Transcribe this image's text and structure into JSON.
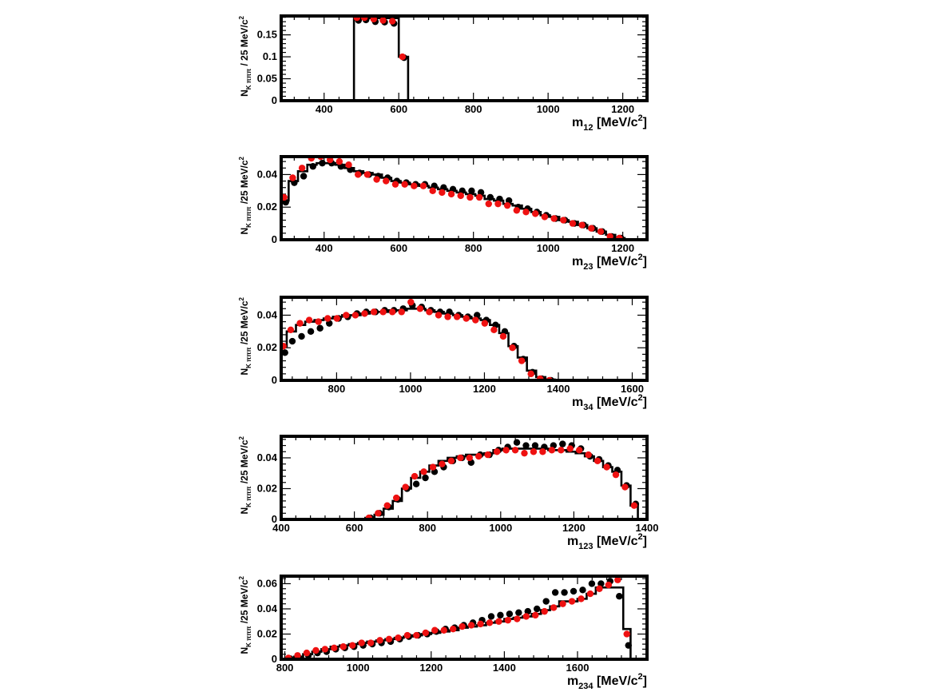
{
  "colors": {
    "model": "#000000",
    "black_points": "#000000",
    "red_points": "#ee1111"
  },
  "chart_data": [
    {
      "type": "line",
      "ylabel": {
        "main": "N",
        "sub": "K πππ",
        "unit": " / 25 MeV/c",
        "sup": "2"
      },
      "xlabel": {
        "main": "m",
        "sub": "12",
        "unit": " [MeV/c",
        "sup": "2",
        "close": "]"
      },
      "xlim": [
        285,
        1265
      ],
      "ylim": [
        0,
        0.193
      ],
      "xticks": [
        400,
        600,
        800,
        1000,
        1200
      ],
      "xtick_labels": [
        "400",
        "600",
        "800",
        "1000",
        "1200"
      ],
      "yticks": [
        0,
        0.05,
        0.1,
        0.15
      ],
      "ytick_labels": [
        "0",
        "0.05",
        "0.1",
        "0.15"
      ],
      "model_hist": {
        "edges": [
          480,
          600,
          625
        ],
        "values": [
          0.188,
          0.1
        ]
      },
      "series_black": {
        "x": [
          490,
          510,
          535,
          560,
          585,
          612
        ],
        "y": [
          0.183,
          0.184,
          0.18,
          0.179,
          0.176,
          0.098
        ]
      },
      "series_red": {
        "x": [
          490,
          510,
          535,
          560,
          585,
          612
        ],
        "y": [
          0.189,
          0.189,
          0.186,
          0.183,
          0.181,
          0.1
        ]
      }
    },
    {
      "type": "line",
      "ylabel": {
        "main": "N",
        "sub": "K πππ",
        "unit": " /25 MeV/c",
        "sup": "2"
      },
      "xlabel": {
        "main": "m",
        "sub": "23",
        "unit": " [MeV/c",
        "sup": "2",
        "close": "]"
      },
      "xlim": [
        285,
        1265
      ],
      "ylim": [
        0,
        0.051
      ],
      "xticks": [
        400,
        600,
        800,
        1000,
        1200
      ],
      "xtick_labels": [
        "400",
        "600",
        "800",
        "1000",
        "1200"
      ],
      "yticks": [
        0,
        0.02,
        0.04
      ],
      "ytick_labels": [
        "0",
        "0.02",
        "0.04"
      ],
      "model_hist": {
        "edges": [
          285,
          305,
          330,
          355,
          380,
          405,
          430,
          455,
          480,
          505,
          530,
          555,
          580,
          605,
          630,
          655,
          680,
          705,
          730,
          755,
          780,
          805,
          830,
          855,
          880,
          905,
          930,
          955,
          980,
          1005,
          1030,
          1055,
          1080,
          1105,
          1130,
          1155,
          1180,
          1205
        ],
        "values": [
          0.024,
          0.036,
          0.042,
          0.046,
          0.047,
          0.047,
          0.046,
          0.044,
          0.042,
          0.041,
          0.04,
          0.038,
          0.036,
          0.035,
          0.034,
          0.033,
          0.032,
          0.031,
          0.03,
          0.029,
          0.028,
          0.027,
          0.025,
          0.024,
          0.022,
          0.021,
          0.019,
          0.017,
          0.015,
          0.014,
          0.012,
          0.011,
          0.009,
          0.007,
          0.005,
          0.003,
          0.001
        ]
      },
      "series_black": {
        "x": [
          295,
          318,
          343,
          368,
          393,
          418,
          443,
          468,
          493,
          518,
          543,
          568,
          593,
          618,
          643,
          668,
          693,
          718,
          743,
          768,
          793,
          818,
          843,
          868,
          893,
          918,
          943,
          968,
          993,
          1018,
          1043,
          1068,
          1093,
          1118,
          1143,
          1168,
          1193
        ],
        "y": [
          0.023,
          0.035,
          0.039,
          0.045,
          0.047,
          0.047,
          0.045,
          0.043,
          0.041,
          0.04,
          0.039,
          0.038,
          0.036,
          0.035,
          0.034,
          0.034,
          0.033,
          0.032,
          0.031,
          0.03,
          0.03,
          0.029,
          0.026,
          0.025,
          0.024,
          0.02,
          0.019,
          0.017,
          0.015,
          0.013,
          0.012,
          0.01,
          0.009,
          0.007,
          0.005,
          0.002,
          0.001
        ]
      },
      "series_red": {
        "x": [
          295,
          318,
          343,
          368,
          393,
          418,
          443,
          468,
          493,
          518,
          543,
          568,
          593,
          618,
          643,
          668,
          693,
          718,
          743,
          768,
          793,
          818,
          843,
          868,
          893,
          918,
          943,
          968,
          993,
          1018,
          1043,
          1068,
          1093,
          1118,
          1143,
          1168,
          1193
        ],
        "y": [
          0.026,
          0.038,
          0.044,
          0.05,
          0.051,
          0.049,
          0.048,
          0.046,
          0.04,
          0.04,
          0.037,
          0.036,
          0.034,
          0.034,
          0.033,
          0.033,
          0.03,
          0.029,
          0.028,
          0.027,
          0.026,
          0.026,
          0.022,
          0.022,
          0.021,
          0.018,
          0.017,
          0.016,
          0.014,
          0.013,
          0.012,
          0.01,
          0.009,
          0.007,
          0.005,
          0.002,
          0.001
        ]
      }
    },
    {
      "type": "line",
      "ylabel": {
        "main": "N",
        "sub": "K πππ",
        "unit": " /25 MeV/c",
        "sup": "2"
      },
      "xlabel": {
        "main": "m",
        "sub": "34",
        "unit": " [MeV/c",
        "sup": "2",
        "close": "]"
      },
      "xlim": [
        650,
        1640
      ],
      "ylim": [
        0,
        0.051
      ],
      "xticks": [
        800,
        1000,
        1200,
        1400,
        1600
      ],
      "xtick_labels": [
        "800",
        "1000",
        "1200",
        "1400",
        "1600"
      ],
      "yticks": [
        0,
        0.02,
        0.04
      ],
      "ytick_labels": [
        "0",
        "0.02",
        "0.04"
      ],
      "model_hist": {
        "edges": [
          650,
          665,
          690,
          715,
          740,
          765,
          790,
          815,
          840,
          865,
          890,
          915,
          940,
          965,
          990,
          1015,
          1040,
          1065,
          1090,
          1115,
          1140,
          1165,
          1190,
          1215,
          1240,
          1265,
          1290,
          1315,
          1340,
          1365,
          1390
        ],
        "values": [
          0.021,
          0.03,
          0.034,
          0.036,
          0.037,
          0.038,
          0.039,
          0.04,
          0.04,
          0.041,
          0.042,
          0.042,
          0.043,
          0.043,
          0.044,
          0.044,
          0.043,
          0.042,
          0.041,
          0.04,
          0.039,
          0.038,
          0.037,
          0.034,
          0.029,
          0.021,
          0.014,
          0.006,
          0.002,
          0.0005
        ]
      },
      "series_black": {
        "x": [
          658,
          678,
          703,
          728,
          753,
          778,
          803,
          828,
          853,
          878,
          903,
          928,
          953,
          978,
          1003,
          1028,
          1053,
          1078,
          1103,
          1128,
          1153,
          1178,
          1203,
          1228,
          1253,
          1278,
          1303,
          1328,
          1353,
          1378
        ],
        "y": [
          0.017,
          0.024,
          0.027,
          0.03,
          0.032,
          0.035,
          0.038,
          0.039,
          0.041,
          0.042,
          0.042,
          0.043,
          0.043,
          0.044,
          0.046,
          0.045,
          0.043,
          0.042,
          0.042,
          0.04,
          0.039,
          0.04,
          0.037,
          0.034,
          0.03,
          0.021,
          0.013,
          0.005,
          0.001,
          0.0
        ]
      },
      "series_red": {
        "x": [
          658,
          678,
          703,
          728,
          753,
          778,
          803,
          828,
          853,
          878,
          903,
          928,
          953,
          978,
          1003,
          1028,
          1053,
          1078,
          1103,
          1128,
          1153,
          1178,
          1203,
          1228,
          1253,
          1278,
          1303,
          1328,
          1353,
          1378
        ],
        "y": [
          0.021,
          0.031,
          0.035,
          0.037,
          0.036,
          0.038,
          0.038,
          0.04,
          0.04,
          0.041,
          0.042,
          0.042,
          0.042,
          0.042,
          0.048,
          0.044,
          0.042,
          0.04,
          0.039,
          0.039,
          0.038,
          0.037,
          0.035,
          0.031,
          0.027,
          0.02,
          0.012,
          0.004,
          0.001,
          0.0
        ]
      }
    },
    {
      "type": "line",
      "ylabel": {
        "main": "N",
        "sub": "K πππ",
        "unit": " /25 MeV/c",
        "sup": "2"
      },
      "xlabel": {
        "main": "m",
        "sub": "123",
        "unit": " [MeV/c",
        "sup": "2",
        "close": "]"
      },
      "xlim": [
        400,
        1400
      ],
      "ylim": [
        0,
        0.054
      ],
      "xticks": [
        400,
        600,
        800,
        1000,
        1200,
        1400
      ],
      "xtick_labels": [
        "400",
        "600",
        "800",
        "1000",
        "1200",
        "1400"
      ],
      "yticks": [
        0,
        0.02,
        0.04
      ],
      "ytick_labels": [
        "0",
        "0.02",
        "0.04"
      ],
      "model_hist": {
        "edges": [
          630,
          655,
          680,
          705,
          730,
          755,
          780,
          805,
          830,
          855,
          880,
          905,
          930,
          955,
          980,
          1005,
          1030,
          1055,
          1080,
          1105,
          1130,
          1155,
          1180,
          1205,
          1230,
          1255,
          1280,
          1305,
          1330,
          1355,
          1375
        ],
        "values": [
          0.001,
          0.003,
          0.007,
          0.012,
          0.02,
          0.027,
          0.031,
          0.035,
          0.038,
          0.04,
          0.041,
          0.042,
          0.042,
          0.043,
          0.045,
          0.046,
          0.046,
          0.046,
          0.046,
          0.046,
          0.045,
          0.045,
          0.044,
          0.043,
          0.041,
          0.038,
          0.034,
          0.031,
          0.022,
          0.009
        ]
      },
      "series_black": {
        "x": [
          642,
          667,
          692,
          717,
          742,
          767,
          792,
          817,
          842,
          867,
          892,
          917,
          942,
          967,
          992,
          1017,
          1042,
          1067,
          1092,
          1117,
          1142,
          1167,
          1192,
          1217,
          1242,
          1267,
          1292,
          1317,
          1342,
          1367
        ],
        "y": [
          0.001,
          0.004,
          0.008,
          0.013,
          0.02,
          0.023,
          0.027,
          0.031,
          0.034,
          0.038,
          0.04,
          0.037,
          0.042,
          0.042,
          0.045,
          0.047,
          0.05,
          0.048,
          0.048,
          0.047,
          0.048,
          0.049,
          0.048,
          0.046,
          0.041,
          0.039,
          0.035,
          0.032,
          0.022,
          0.01
        ]
      },
      "series_red": {
        "x": [
          642,
          667,
          692,
          717,
          742,
          767,
          792,
          817,
          842,
          867,
          892,
          917,
          942,
          967,
          992,
          1017,
          1042,
          1067,
          1092,
          1117,
          1142,
          1167,
          1192,
          1217,
          1242,
          1267,
          1292,
          1317,
          1342,
          1367
        ],
        "y": [
          0.001,
          0.004,
          0.009,
          0.014,
          0.021,
          0.028,
          0.031,
          0.034,
          0.036,
          0.038,
          0.04,
          0.04,
          0.041,
          0.042,
          0.044,
          0.045,
          0.045,
          0.043,
          0.044,
          0.044,
          0.045,
          0.045,
          0.046,
          0.045,
          0.042,
          0.038,
          0.034,
          0.029,
          0.021,
          0.009
        ]
      }
    },
    {
      "type": "line",
      "ylabel": {
        "main": "N",
        "sub": "K πππ",
        "unit": " /25 MeV/c",
        "sup": "2"
      },
      "xlabel": {
        "main": "m",
        "sub": "234",
        "unit": " [MeV/c",
        "sup": "2",
        "close": "]"
      },
      "xlim": [
        790,
        1790
      ],
      "ylim": [
        0,
        0.066
      ],
      "xticks": [
        800,
        1000,
        1200,
        1400,
        1600
      ],
      "xtick_labels": [
        "800",
        "1000",
        "1200",
        "1400",
        "1600"
      ],
      "yticks": [
        0,
        0.02,
        0.04,
        0.06
      ],
      "ytick_labels": [
        "0",
        "0.02",
        "0.04",
        "0.06"
      ],
      "model_hist": {
        "edges": [
          800,
          825,
          850,
          875,
          900,
          925,
          950,
          975,
          1000,
          1025,
          1050,
          1075,
          1100,
          1125,
          1150,
          1175,
          1200,
          1225,
          1250,
          1275,
          1300,
          1325,
          1350,
          1375,
          1400,
          1425,
          1450,
          1475,
          1500,
          1525,
          1550,
          1575,
          1600,
          1625,
          1650,
          1675,
          1700,
          1725,
          1745
        ],
        "values": [
          0.0005,
          0.002,
          0.004,
          0.006,
          0.008,
          0.01,
          0.011,
          0.012,
          0.013,
          0.014,
          0.015,
          0.016,
          0.017,
          0.018,
          0.019,
          0.02,
          0.021,
          0.022,
          0.023,
          0.025,
          0.026,
          0.027,
          0.029,
          0.03,
          0.032,
          0.033,
          0.034,
          0.036,
          0.039,
          0.042,
          0.046,
          0.046,
          0.048,
          0.052,
          0.057,
          0.057,
          0.057,
          0.024
        ]
      },
      "series_black": {
        "x": [
          812,
          837,
          862,
          887,
          912,
          937,
          962,
          987,
          1012,
          1037,
          1062,
          1087,
          1112,
          1137,
          1162,
          1187,
          1212,
          1237,
          1262,
          1287,
          1312,
          1337,
          1362,
          1387,
          1412,
          1437,
          1462,
          1487,
          1512,
          1537,
          1562,
          1587,
          1612,
          1637,
          1662,
          1687,
          1712,
          1737
        ],
        "y": [
          0.0005,
          0.001,
          0.003,
          0.005,
          0.006,
          0.008,
          0.009,
          0.01,
          0.011,
          0.012,
          0.013,
          0.014,
          0.016,
          0.018,
          0.019,
          0.02,
          0.022,
          0.024,
          0.025,
          0.027,
          0.029,
          0.031,
          0.034,
          0.035,
          0.036,
          0.037,
          0.038,
          0.04,
          0.046,
          0.053,
          0.053,
          0.054,
          0.055,
          0.06,
          0.06,
          0.062,
          0.05,
          0.011
        ]
      },
      "series_red": {
        "x": [
          812,
          837,
          862,
          887,
          912,
          937,
          962,
          987,
          1012,
          1037,
          1062,
          1087,
          1112,
          1137,
          1162,
          1187,
          1212,
          1237,
          1262,
          1287,
          1312,
          1337,
          1362,
          1387,
          1412,
          1437,
          1462,
          1487,
          1512,
          1537,
          1562,
          1587,
          1612,
          1637,
          1662,
          1687,
          1712,
          1737
        ],
        "y": [
          0.001,
          0.003,
          0.005,
          0.007,
          0.008,
          0.009,
          0.01,
          0.011,
          0.013,
          0.013,
          0.015,
          0.016,
          0.017,
          0.019,
          0.019,
          0.021,
          0.023,
          0.023,
          0.024,
          0.026,
          0.027,
          0.028,
          0.029,
          0.03,
          0.031,
          0.032,
          0.034,
          0.035,
          0.038,
          0.041,
          0.044,
          0.046,
          0.048,
          0.052,
          0.056,
          0.059,
          0.063,
          0.02
        ]
      }
    }
  ]
}
